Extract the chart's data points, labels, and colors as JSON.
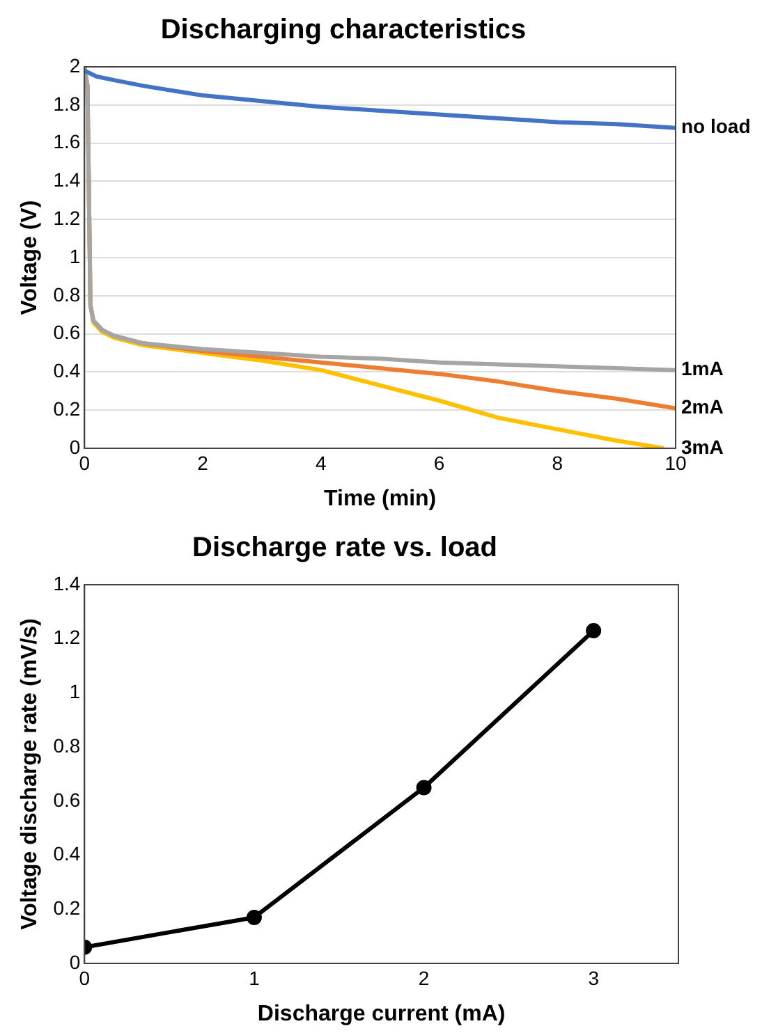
{
  "chart_data": [
    {
      "type": "line",
      "title": "Discharging characteristics",
      "xlabel": "Time (min)",
      "ylabel": "Voltage (V)",
      "xlim": [
        0,
        10
      ],
      "xticks": [
        0,
        2,
        4,
        6,
        8,
        10
      ],
      "ylim": [
        0,
        2
      ],
      "yticks": [
        0,
        0.2,
        0.4,
        0.6,
        0.8,
        1,
        1.2,
        1.4,
        1.6,
        1.8,
        2
      ],
      "grid": "y",
      "legend": false,
      "marker": "none",
      "line_style": "solid",
      "series": [
        {
          "name": "no load",
          "color": "#4472c4",
          "x": [
            0,
            0.2,
            0.5,
            1,
            2,
            3,
            4,
            5,
            6,
            7,
            8,
            9,
            10
          ],
          "values": [
            1.98,
            1.95,
            1.93,
            1.9,
            1.85,
            1.82,
            1.79,
            1.77,
            1.75,
            1.73,
            1.71,
            1.7,
            1.68
          ]
        },
        {
          "name": "1mA",
          "color": "#a5a5a5",
          "x": [
            0,
            0.05,
            0.1,
            0.15,
            0.3,
            0.5,
            1,
            2,
            3,
            4,
            5,
            6,
            7,
            8,
            9,
            10
          ],
          "values": [
            2,
            1.9,
            0.75,
            0.67,
            0.62,
            0.59,
            0.55,
            0.52,
            0.5,
            0.48,
            0.47,
            0.45,
            0.44,
            0.43,
            0.42,
            0.41
          ]
        },
        {
          "name": "2mA",
          "color": "#ed7d31",
          "x": [
            0,
            0.05,
            0.1,
            0.15,
            0.3,
            0.5,
            1,
            2,
            3,
            4,
            5,
            6,
            7,
            8,
            9,
            10
          ],
          "values": [
            2,
            1.9,
            0.75,
            0.67,
            0.62,
            0.59,
            0.55,
            0.51,
            0.48,
            0.45,
            0.42,
            0.39,
            0.35,
            0.3,
            0.26,
            0.21
          ]
        },
        {
          "name": "3mA",
          "color": "#ffc000",
          "x": [
            0,
            0.05,
            0.1,
            0.15,
            0.3,
            0.5,
            1,
            2,
            3,
            4,
            5,
            6,
            7,
            8,
            9,
            9.8
          ],
          "values": [
            2,
            1.9,
            0.75,
            0.66,
            0.61,
            0.58,
            0.54,
            0.5,
            0.46,
            0.41,
            0.33,
            0.25,
            0.16,
            0.1,
            0.04,
            0
          ]
        }
      ]
    },
    {
      "type": "line",
      "title": "Discharge rate vs. load",
      "xlabel": "Discharge current (mA)",
      "ylabel": "Voltage discharge rate (mV/s)",
      "xlim": [
        0,
        3.5
      ],
      "xticks": [
        0,
        1,
        2,
        3
      ],
      "ylim": [
        0,
        1.4
      ],
      "yticks": [
        0,
        0.2,
        0.4,
        0.6,
        0.8,
        1,
        1.2,
        1.4
      ],
      "grid": false,
      "legend": false,
      "marker": "circle",
      "line_style": "solid",
      "series": [
        {
          "color": "#000000",
          "x": [
            0,
            1,
            2,
            3
          ],
          "values": [
            0.06,
            0.17,
            0.65,
            1.23
          ]
        }
      ]
    }
  ]
}
